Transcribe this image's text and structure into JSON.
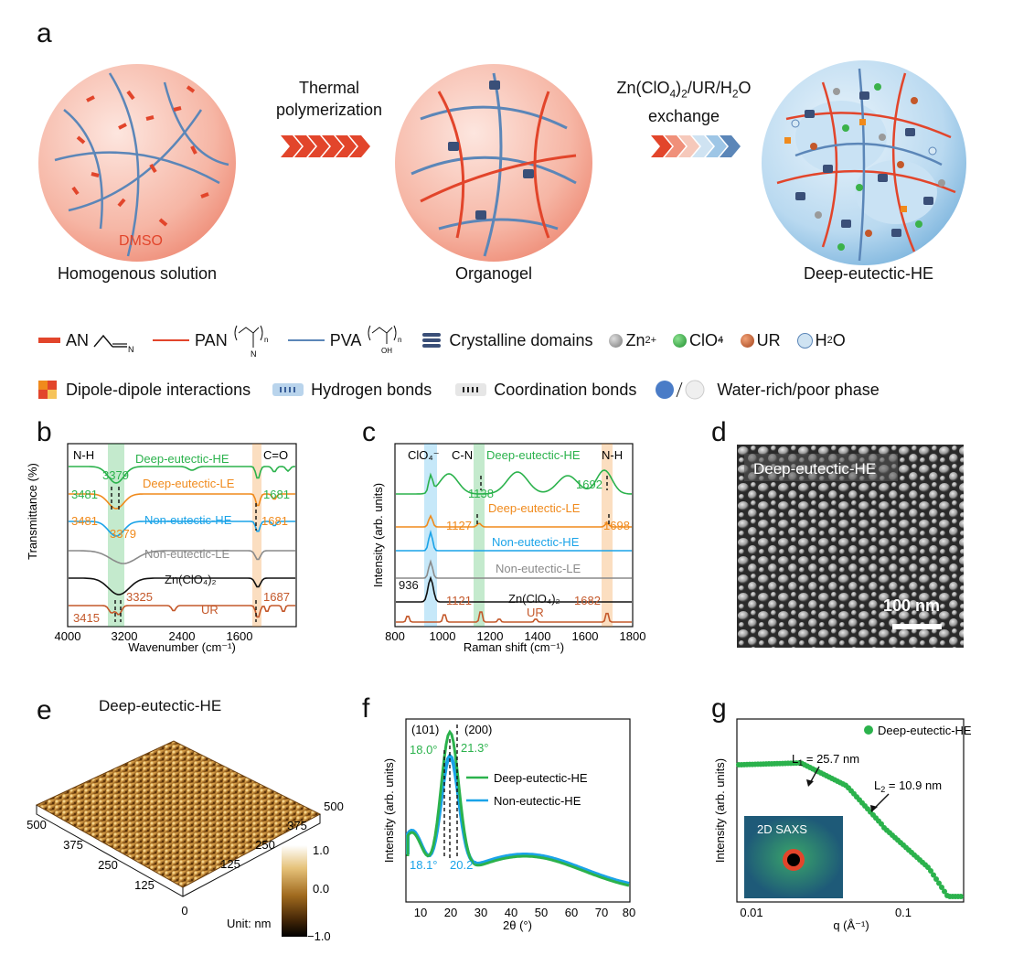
{
  "panel_a": {
    "letter": "a",
    "step1_line1": "Thermal",
    "step1_line2": "polymerization",
    "step2_line1": "Zn(ClO",
    "step2_line1_sub": "4",
    "step2_line1_b": ")",
    "step2_line1_sub2": "2",
    "step2_line1_c": "/UR/H",
    "step2_line1_sub3": "2",
    "step2_line1_d": "O",
    "step2_line2": "exchange",
    "circle1_inner": "DMSO",
    "circle1_label": "Homogenous solution",
    "circle2_label": "Organogel",
    "circle3_label": "Deep-eutectic-HE"
  },
  "legend": {
    "an": "AN",
    "pan": "PAN",
    "pva": "PVA",
    "crystal": "Crystalline domains",
    "zn": "Zn",
    "zn_sup": "2+",
    "clo4": "ClO",
    "clo4_sub": "4",
    "clo4_sup": "−",
    "ur": "UR",
    "h2o": "H",
    "h2o_sub": "2",
    "h2o_b": "O",
    "dipole": "Dipole-dipole interactions",
    "hbond": "Hydrogen bonds",
    "coord": "Coordination bonds",
    "phase": "Water-rich/poor phase",
    "sub_n": "n",
    "atom_n": "N",
    "atom_oh": "OH"
  },
  "panel_b": {
    "letter": "b",
    "ylabel": "Transmittance (%)",
    "xlabel": "Wavenumber (cm⁻¹)",
    "xticks": [
      "4000",
      "3200",
      "2400",
      "1600"
    ],
    "band_nh": "N-H",
    "band_co": "C=O",
    "series": [
      "Deep-eutectic-HE",
      "Deep-eutectic-LE",
      "Non-eutectic-HE",
      "Non-eutectic-LE",
      "Zn(ClO₄)₂",
      "UR"
    ],
    "annotations": [
      "3379",
      "3481",
      "1681",
      "3481",
      "3379",
      "1681",
      "3325",
      "1687",
      "3415"
    ]
  },
  "panel_c": {
    "letter": "c",
    "ylabel": "Intensity (arb. units)",
    "xlabel": "Raman shift (cm⁻¹)",
    "xticks": [
      "800",
      "1000",
      "1200",
      "1400",
      "1600",
      "1800"
    ],
    "band_clo4": "ClO₄⁻",
    "band_cn": "C-N",
    "band_nh": "N-H",
    "series": [
      "Deep-eutectic-HE",
      "Deep-eutectic-LE",
      "Non-eutectic-HE",
      "Non-eutectic-LE",
      "Zn(ClO₄)₂",
      "UR"
    ],
    "annotations": [
      "1138",
      "1692",
      "1127",
      "1698",
      "936",
      "1121",
      "1682"
    ]
  },
  "panel_d": {
    "letter": "d",
    "title": "Deep-eutectic-HE",
    "scale": "100 nm"
  },
  "panel_e": {
    "letter": "e",
    "title": "Deep-eutectic-HE",
    "axis_ticks_left": [
      "500",
      "375",
      "250",
      "125",
      "0"
    ],
    "axis_ticks_right": [
      "500",
      "375",
      "250",
      "125"
    ],
    "colorbar_ticks": [
      "1.0",
      "0.0",
      "−1.0"
    ],
    "unit": "Unit:  nm"
  },
  "panel_f": {
    "letter": "f",
    "ylabel": "Intensity (arb. units)",
    "xlabel": "2θ (°)",
    "xticks": [
      "10",
      "20",
      "30",
      "40",
      "50",
      "60",
      "70",
      "80"
    ],
    "peak1": "(101)",
    "peak2": "(200)",
    "series": [
      "Deep-eutectic-HE",
      "Non-eutectic-HE"
    ],
    "annotations": [
      "18.0°",
      "21.3°",
      "18.1°",
      "20.2°"
    ]
  },
  "panel_g": {
    "letter": "g",
    "ylabel": "Intensity (arb. units)",
    "xlabel": "q (Å⁻¹)",
    "xticks": [
      "0.01",
      "0.1"
    ],
    "legend": "Deep-eutectic-HE",
    "l1": "L",
    "l1_sub": "1",
    "l1_val": " = 25.7 nm",
    "l2": "L",
    "l2_sub": "2",
    "l2_val": " = 10.9 nm",
    "inset": "2D SAXS"
  },
  "colors": {
    "green": "#2bb24c",
    "orange": "#f08a1c",
    "blue": "#1aa3e8",
    "gray": "#8a8a8a",
    "black": "#111111",
    "brown": "#c4582a",
    "red": "#e2452b",
    "pva": "#5b86b8"
  }
}
